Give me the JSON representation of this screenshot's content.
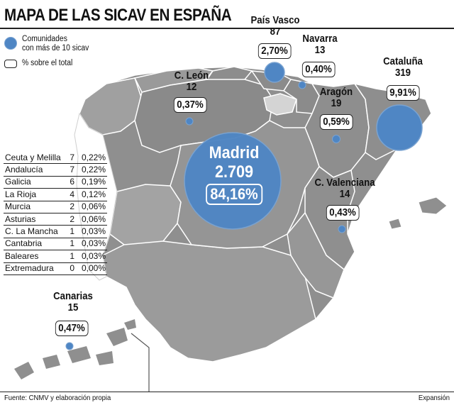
{
  "title": "MAPA DE LAS SICAV EN ESPAÑA",
  "legend": {
    "circle_label_line1": "Comunidades",
    "circle_label_line2": "con más de 10 sicav",
    "box_label": "% sobre el total"
  },
  "regions": {
    "pais_vasco": {
      "name": "País Vasco",
      "count": "87",
      "pct": "2,70%"
    },
    "navarra": {
      "name": "Navarra",
      "count": "13",
      "pct": "0,40%"
    },
    "cataluna": {
      "name": "Cataluña",
      "count": "319",
      "pct": "9,91%"
    },
    "c_leon": {
      "name": "C. León",
      "count": "12",
      "pct": "0,37%"
    },
    "aragon": {
      "name": "Aragón",
      "count": "19",
      "pct": "0,59%"
    },
    "madrid": {
      "name": "Madrid",
      "count": "2.709",
      "pct": "84,16%"
    },
    "c_valenciana": {
      "name": "C. Valenciana",
      "count": "14",
      "pct": "0,43%"
    },
    "canarias": {
      "name": "Canarias",
      "count": "15",
      "pct": "0,47%"
    }
  },
  "table": [
    {
      "name": "Ceuta y Melilla",
      "count": "7",
      "pct": "0,22%"
    },
    {
      "name": "Andalucía",
      "count": "7",
      "pct": "0,22%"
    },
    {
      "name": "Galicia",
      "count": "6",
      "pct": "0,19%"
    },
    {
      "name": "La Rioja",
      "count": "4",
      "pct": "0,12%"
    },
    {
      "name": "Murcia",
      "count": "2",
      "pct": "0,06%"
    },
    {
      "name": "Asturias",
      "count": "2",
      "pct": "0,06%"
    },
    {
      "name": "C. La Mancha",
      "count": "1",
      "pct": "0,03%"
    },
    {
      "name": "Cantabria",
      "count": "1",
      "pct": "0,03%"
    },
    {
      "name": "Baleares",
      "count": "1",
      "pct": "0,03%"
    },
    {
      "name": "Extremadura",
      "count": "0",
      "pct": "0,00%"
    }
  ],
  "footer": {
    "source": "Fuente: CNMV y elaboración propia",
    "publisher": "Expansión"
  },
  "colors": {
    "land": "#8c8c8c",
    "land_light": "#9e9e9e",
    "la_rioja": "#d9d9d9",
    "bubble": "#4f86c4",
    "borders": "#ffffff"
  }
}
